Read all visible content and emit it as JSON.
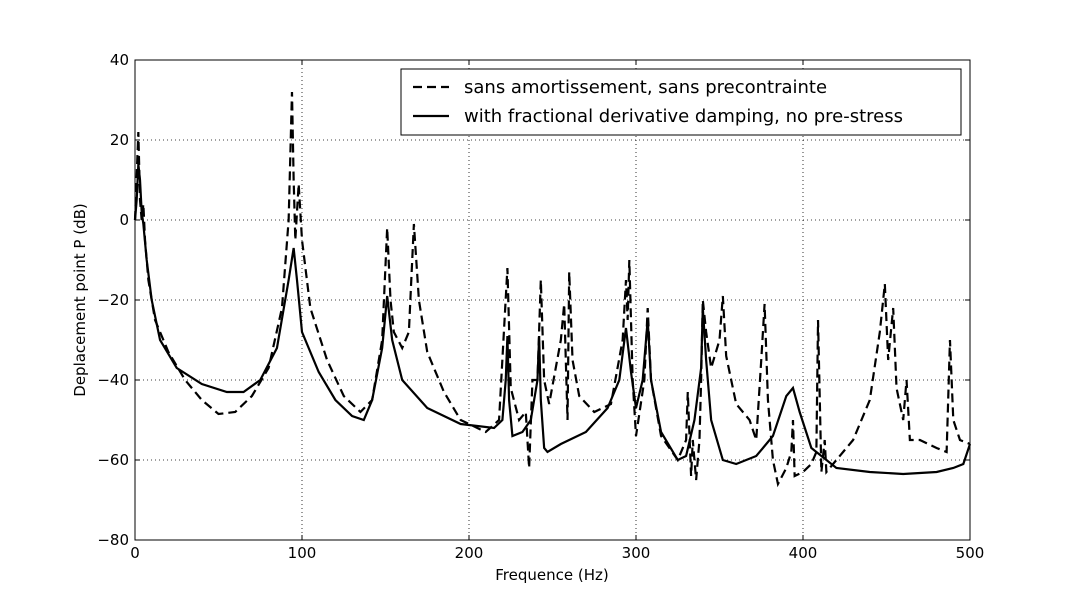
{
  "chart_data": {
    "type": "line",
    "xlabel": "Frequence (Hz)",
    "ylabel": "Deplacement point P (dB)",
    "xlim": [
      0,
      500
    ],
    "xticks": [
      0,
      100,
      200,
      300,
      400,
      500
    ],
    "ylim": [
      -80,
      40
    ],
    "yticks": [
      {
        "value": -80,
        "label": "−80"
      },
      {
        "value": -60,
        "label": "−60"
      },
      {
        "value": -40,
        "label": "−40"
      },
      {
        "value": -20,
        "label": "−20"
      },
      0,
      20,
      40
    ],
    "grid": true,
    "legend": "upper right",
    "series": [
      {
        "name": "sans amortissement, sans precontrainte",
        "color": "#000000",
        "linestyle": "dashed",
        "x": [
          0,
          2,
          3,
          4,
          5,
          6,
          8,
          12,
          20,
          30,
          40,
          50,
          60,
          70,
          80,
          88,
          92,
          94,
          95,
          96,
          98,
          100,
          105,
          115,
          125,
          135,
          142,
          148,
          151,
          153,
          155,
          160,
          164,
          167,
          170,
          175,
          185,
          195,
          210,
          218,
          223,
          225,
          230,
          234,
          236,
          238,
          241,
          243,
          245,
          248,
          255,
          257,
          259,
          260,
          262,
          266,
          275,
          285,
          292,
          294,
          295,
          296,
          298,
          300,
          305,
          307,
          309,
          315,
          325,
          330,
          331,
          333,
          334,
          336,
          338,
          339,
          340,
          342,
          345,
          350,
          352,
          354,
          360,
          368,
          372,
          375,
          377,
          379,
          382,
          385,
          390,
          393,
          394,
          395,
          400,
          405,
          408,
          409,
          411,
          413,
          414,
          420,
          430,
          440,
          446,
          449,
          451,
          454,
          456,
          460,
          462,
          464,
          470,
          480,
          486,
          488,
          490,
          494,
          500
        ],
        "values": [
          0,
          22,
          5,
          0,
          4,
          -5,
          -15,
          -25,
          -33,
          -40,
          -45,
          -48.5,
          -48,
          -44,
          -37,
          -22,
          0,
          32,
          10,
          -5,
          9,
          -5,
          -22,
          -35,
          -44,
          -48,
          -45,
          -30,
          -2,
          -20,
          -28,
          -32,
          -28,
          -1,
          -20,
          -33,
          -43,
          -50,
          -53,
          -50,
          -12,
          -42,
          -50,
          -48,
          -62,
          -40,
          -40,
          -15,
          -40,
          -46,
          -30,
          -21,
          -50,
          -13,
          -35,
          -44,
          -48,
          -46,
          -30,
          -15,
          -25,
          -10,
          -40,
          -54,
          -40,
          -22,
          -40,
          -54,
          -60,
          -55,
          -43,
          -64,
          -55,
          -65,
          -55,
          -40,
          -20,
          -28,
          -37,
          -30,
          -19,
          -34,
          -46,
          -50,
          -55,
          -35,
          -21,
          -45,
          -60,
          -66,
          -62,
          -58,
          -50,
          -64,
          -63,
          -61,
          -58,
          -25,
          -63,
          -55,
          -63,
          -60,
          -55,
          -45,
          -28,
          -16,
          -35,
          -22,
          -42,
          -50,
          -40,
          -55,
          -55,
          -57,
          -58,
          -30,
          -50,
          -55,
          -56
        ]
      },
      {
        "name": "with fractional derivative damping, no pre-stress",
        "color": "#000000",
        "linestyle": "solid",
        "x": [
          0,
          1,
          2,
          3,
          4,
          5,
          7,
          10,
          15,
          25,
          40,
          55,
          65,
          75,
          85,
          92,
          95,
          97,
          100,
          110,
          120,
          130,
          137,
          142,
          148,
          151,
          154,
          160,
          175,
          195,
          215,
          220,
          222,
          223,
          224,
          226,
          232,
          237,
          241,
          242,
          243,
          245,
          247,
          255,
          270,
          283,
          290,
          294,
          297,
          300,
          304,
          307,
          309,
          315,
          325,
          330,
          335,
          339,
          340,
          342,
          345,
          352,
          360,
          372,
          382,
          390,
          394,
          398,
          405,
          420,
          440,
          460,
          480,
          490,
          496,
          500
        ],
        "values": [
          0,
          5,
          14,
          10,
          2,
          -1,
          -10,
          -20,
          -30,
          -37,
          -41,
          -43,
          -43,
          -40,
          -32,
          -15,
          -7,
          -15,
          -28,
          -38,
          -45,
          -49,
          -50,
          -45,
          -32,
          -19,
          -30,
          -40,
          -47,
          -51,
          -52,
          -50,
          -40,
          -29,
          -45,
          -54,
          -53,
          -50,
          -40,
          -29,
          -45,
          -57,
          -58,
          -56,
          -53,
          -47,
          -40,
          -27,
          -38,
          -47,
          -40,
          -25,
          -40,
          -53,
          -60,
          -59,
          -50,
          -37,
          -22,
          -35,
          -50,
          -60,
          -61,
          -59,
          -54,
          -44,
          -42,
          -48,
          -57,
          -62,
          -63,
          -63.5,
          -63,
          -62,
          -61,
          -56
        ]
      }
    ]
  }
}
